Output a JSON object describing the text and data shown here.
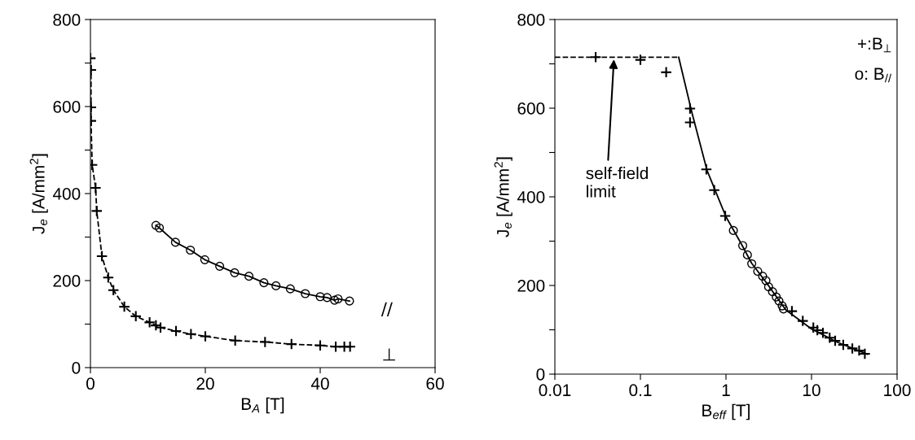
{
  "chart_data": [
    {
      "type": "line",
      "xlabel": "B$_{A}$ [T]",
      "ylabel": "J$_{e}$ [A/mm$^{2}$]",
      "xlim": [
        0,
        60
      ],
      "xticks": [
        0,
        20,
        40,
        60
      ],
      "ylim": [
        0,
        800
      ],
      "yticks": [
        0,
        {
          "value": 100,
          "label": null
        },
        200,
        {
          "value": 300,
          "label": null
        },
        400,
        {
          "value": 500,
          "label": null
        },
        600,
        {
          "value": 700,
          "label": null
        },
        800
      ],
      "grid": false,
      "legend": false,
      "series": [
        {
          "name": "⊥",
          "color": "#000000",
          "marker": "cross",
          "line_style": "dashed",
          "x": [
            0.0,
            0.1,
            0.1,
            0.1,
            0.3,
            0.9,
            1.1,
            2.0,
            3.1,
            4.0,
            5.9,
            7.9,
            10.3,
            11.4,
            12.2,
            14.9,
            17.5,
            20.0,
            25.2,
            30.4,
            35.0,
            40.0,
            42.7,
            44.2,
            45.2
          ],
          "values": [
            711,
            684,
            598,
            567,
            466,
            413,
            360,
            256,
            207,
            178,
            140,
            118,
            104,
            97,
            92,
            84,
            77,
            72,
            62,
            59,
            54,
            51,
            48,
            48,
            48
          ]
        },
        {
          "name": "//",
          "color": "#000000",
          "marker": "circle",
          "line_style": "solid",
          "x": [
            11.4,
            12.0,
            14.8,
            17.4,
            19.9,
            22.5,
            25.1,
            27.6,
            30.2,
            32.3,
            34.8,
            37.4,
            40.0,
            41.2,
            42.5,
            43.1,
            45.1
          ],
          "values": [
            327,
            321,
            288,
            270,
            248,
            233,
            218,
            210,
            195,
            188,
            181,
            170,
            163,
            161,
            155,
            158,
            153
          ]
        }
      ]
    },
    {
      "type": "scatter",
      "xlabel": "B$_{eff}$ [T]",
      "ylabel": "J$_{e}$ [A/mm$^{2}$]",
      "log": "x",
      "xlim": [
        0.01,
        100
      ],
      "xticks": [
        {
          "value": 0.01,
          "label": "0.01"
        },
        {
          "value": 0.1,
          "label": "0.1"
        },
        1,
        10,
        100
      ],
      "ylim": [
        0,
        800
      ],
      "yticks": [
        0,
        {
          "value": 100,
          "label": null
        },
        200,
        {
          "value": 300,
          "label": null
        },
        400,
        {
          "value": 500,
          "label": null
        },
        600,
        {
          "value": 700,
          "label": null
        },
        800
      ],
      "grid": false,
      "legend": false,
      "annotations": [
        "+:B$_{⊥}$",
        "o: B$_{//}$",
        {
          "text": "self-field\nlimit",
          "x": 0.049,
          "y": 710
        }
      ],
      "series": [
        {
          "type": "line",
          "color": "#000000",
          "marker": "none",
          "line_style": "dashed",
          "x": [
            0.01,
            0.28
          ],
          "values": [
            715,
            715
          ]
        },
        {
          "type": "line",
          "color": "#000000",
          "marker": "none",
          "line_style": "solid",
          "x": [
            0.28,
            0.4,
            0.6,
            1,
            1.5,
            2,
            3,
            5,
            10,
            20,
            45
          ],
          "values": [
            715,
            590,
            460,
            355,
            295,
            250,
            205,
            145,
            102,
            72,
            45
          ]
        },
        {
          "color": "#000000",
          "marker": "cross",
          "x": [
            0.03,
            0.1,
            0.2,
            0.38,
            0.38,
            0.59,
            0.73,
            0.98,
            5.9,
            7.9,
            10.5,
            11.7,
            13.6,
            16.3,
            18.9,
            23.5,
            30,
            36,
            42
          ],
          "values": [
            715,
            709,
            681,
            599,
            568,
            462,
            415,
            357,
            142,
            120,
            105,
            99,
            93,
            82,
            75,
            66,
            58,
            53,
            46
          ]
        },
        {
          "color": "#000000",
          "marker": "circle",
          "x": [
            1.22,
            1.57,
            1.78,
            2.0,
            2.35,
            2.68,
            2.93,
            3.15,
            3.5,
            3.87,
            4.16,
            4.54,
            4.7
          ],
          "values": [
            324,
            290,
            269,
            249,
            232,
            221,
            211,
            197,
            186,
            174,
            165,
            154,
            147
          ]
        }
      ]
    }
  ]
}
